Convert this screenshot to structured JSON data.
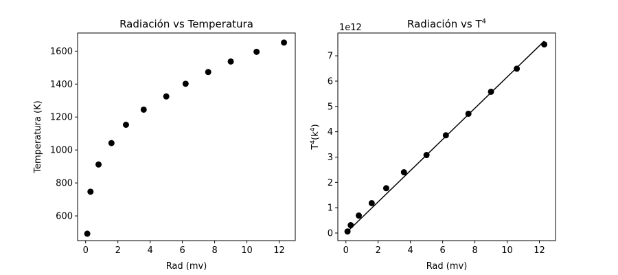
{
  "chart_data": [
    {
      "type": "scatter",
      "title": "Radiación vs Temperatura",
      "xlabel": "Rad (mv)",
      "ylabel": "Temperatura (K)",
      "xlim": [
        -0.5,
        13.0
      ],
      "ylim": [
        450,
        1710
      ],
      "xticks": [
        0,
        2,
        4,
        6,
        8,
        10,
        12
      ],
      "yticks": [
        600,
        800,
        1000,
        1200,
        1400,
        1600
      ],
      "series": [
        {
          "x": [
            0.1,
            0.3,
            0.8,
            1.6,
            2.5,
            3.6,
            5.0,
            6.2,
            7.6,
            9.0,
            10.6,
            12.3
          ],
          "y": [
            492,
            747,
            912,
            1042,
            1153,
            1245,
            1325,
            1402,
            1473,
            1537,
            1596,
            1652
          ]
        }
      ]
    },
    {
      "type": "scatter",
      "title": "Radiación vs T",
      "title_sup": "4",
      "xlabel": "Rad (mv)",
      "ylabel": "T",
      "ylabel_sup": "4",
      "ylabel_tail": "(k",
      "ylabel_tail_sup": "4",
      "ylabel_end": ")",
      "offset_text": "1e12",
      "xlim": [
        -0.5,
        13.0
      ],
      "ylim": [
        -0.3,
        7.9
      ],
      "xticks": [
        0,
        2,
        4,
        6,
        8,
        10,
        12
      ],
      "yticks": [
        0,
        1,
        2,
        3,
        4,
        5,
        6,
        7
      ],
      "series": [
        {
          "x": [
            0.1,
            0.3,
            0.8,
            1.6,
            2.5,
            3.6,
            5.0,
            6.2,
            7.6,
            9.0,
            10.6,
            12.3
          ],
          "y": [
            0.06,
            0.31,
            0.69,
            1.18,
            1.77,
            2.4,
            3.08,
            3.86,
            4.71,
            5.58,
            6.49,
            7.45
          ]
        }
      ],
      "fit_line": {
        "x": [
          0.1,
          12.3
        ],
        "y": [
          0.06,
          7.58
        ]
      }
    }
  ]
}
